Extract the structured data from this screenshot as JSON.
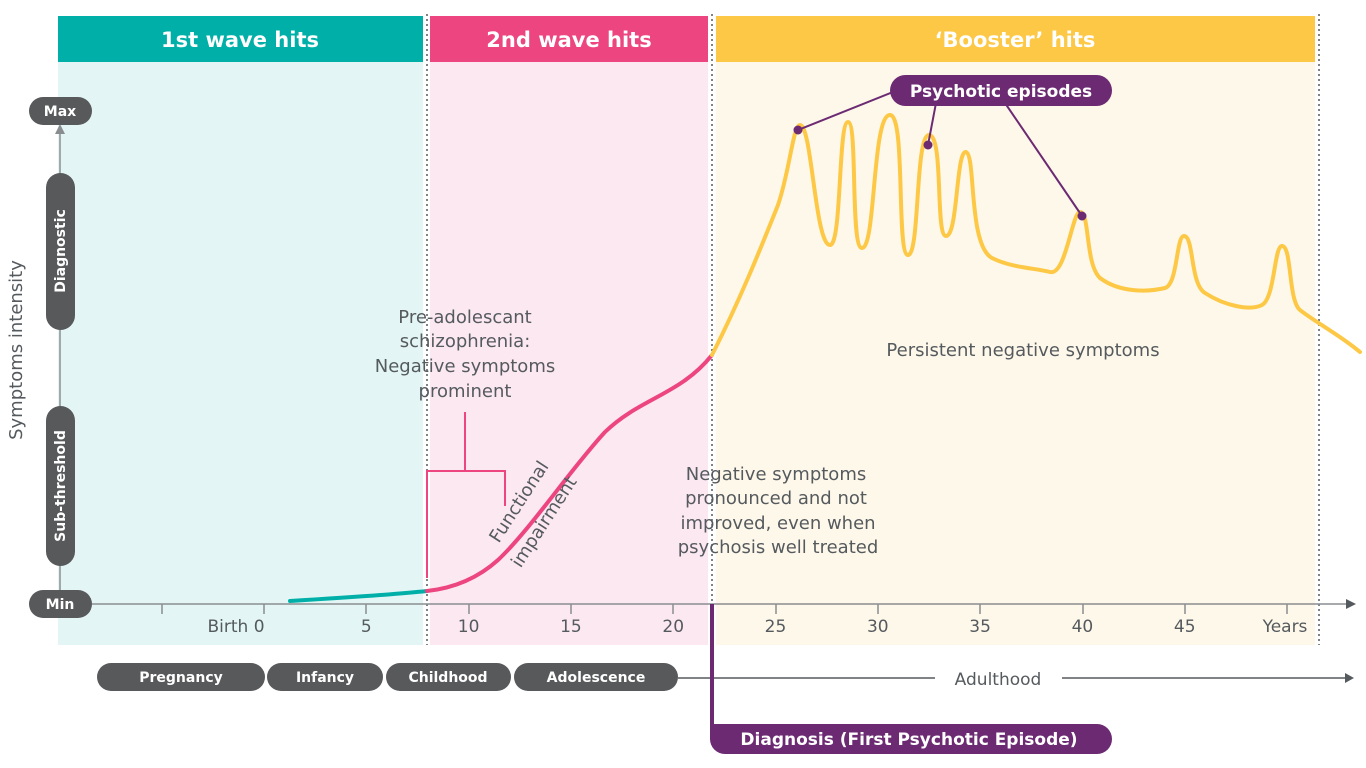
{
  "waves": [
    {
      "label": "1st wave hits",
      "color": "#00b0a8",
      "bg": "#e3f6f5"
    },
    {
      "label": "2nd wave hits",
      "color": "#ec4580",
      "bg": "#fce8f1"
    },
    {
      "label": "‘Booster’ hits",
      "color": "#fdc845",
      "bg": "#fef8ea"
    }
  ],
  "y_axis": {
    "title": "Symptoms intensity",
    "max_label": "Max",
    "min_label": "Min",
    "diagnostic_label": "Diagnostic",
    "subthreshold_label": "Sub-threshold"
  },
  "x_axis": {
    "ticks": [
      "Birth 0",
      "5",
      "10",
      "15",
      "20",
      "25",
      "30",
      "35",
      "40",
      "45",
      "Years"
    ]
  },
  "life_stages": [
    "Pregnancy",
    "Infancy",
    "Childhood",
    "Adolescence"
  ],
  "adulthood_label": "Adulthood",
  "annotations": {
    "pre_adolescent": [
      "Pre-adolescant",
      "schizophrenia:",
      "Negative symptoms",
      "prominent"
    ],
    "functional": [
      "Functional",
      "impairment"
    ],
    "negative_pronounced": [
      "Negative symptoms",
      "pronounced and not",
      "improved, even when",
      "psychosis well treated"
    ],
    "persistent": "Persistent negative symptoms",
    "psychotic_episodes": "Psychotic episodes",
    "diagnosis": "Diagnosis (First Psychotic Episode)"
  },
  "colors": {
    "purple": "#6c2a73",
    "grey_pill": "#58595b",
    "teal_line": "#00b0a8",
    "pink_line": "#ec4580",
    "yellow_line": "#fdc845"
  }
}
